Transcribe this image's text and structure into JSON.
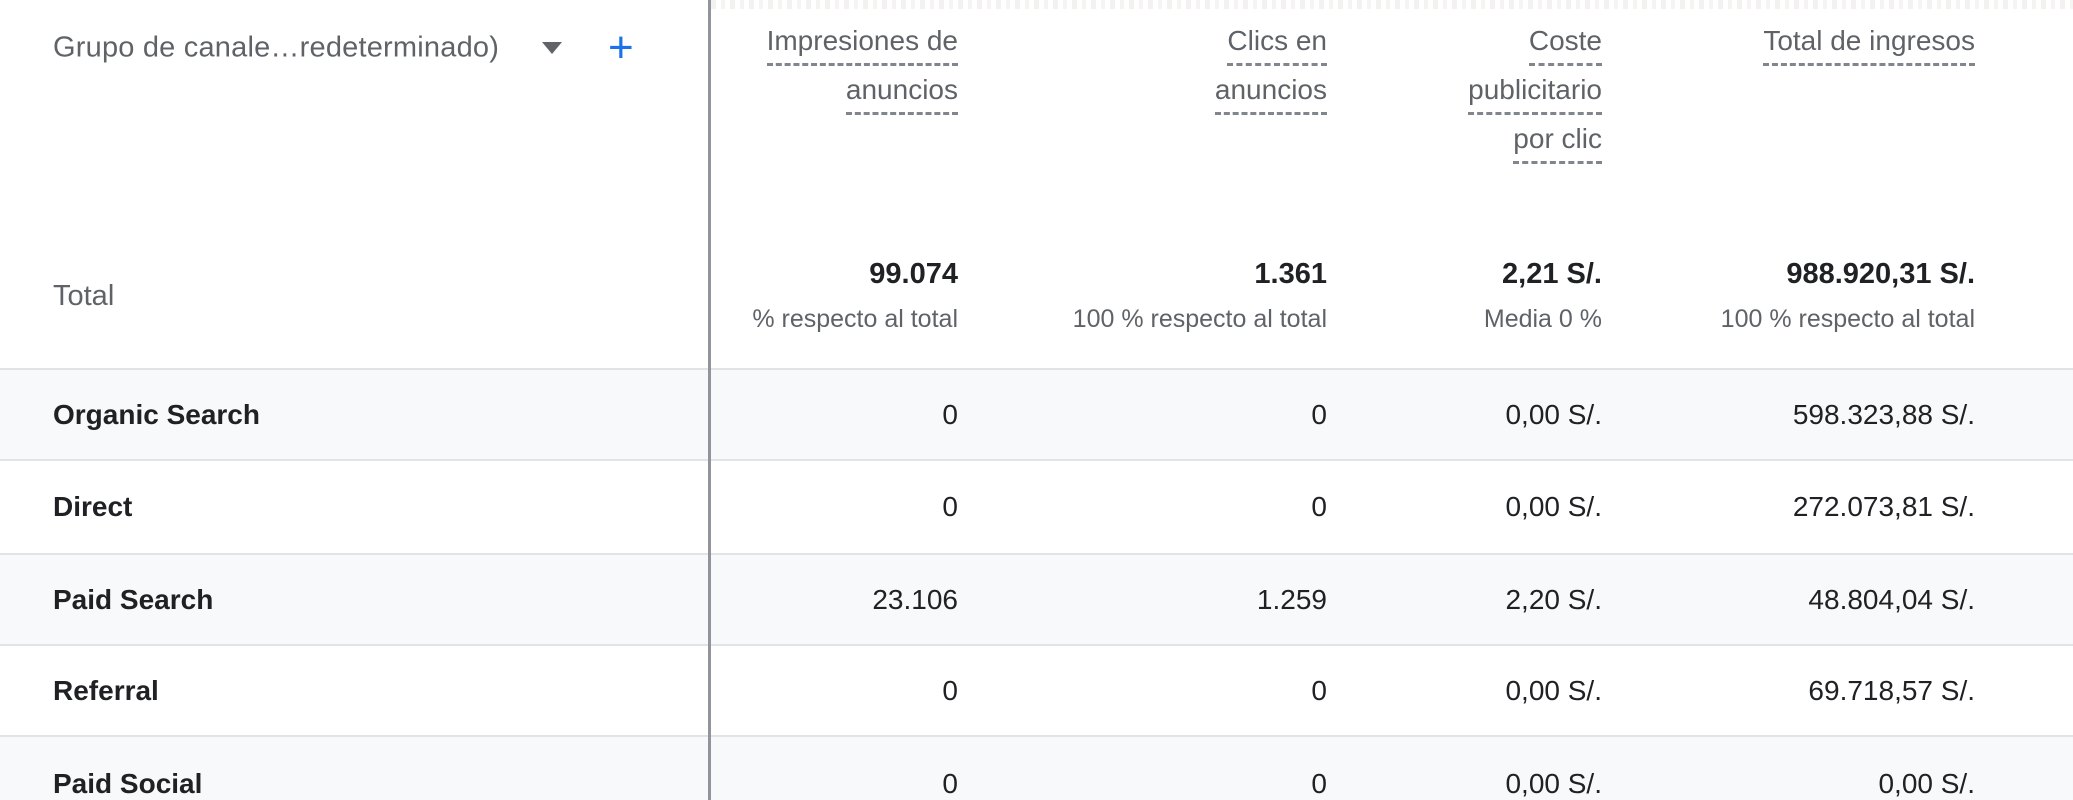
{
  "dimension_selector": {
    "label": "Grupo de canale…redeterminado)"
  },
  "icons": {
    "chevron_down_icon": "▾",
    "plus_icon": "+"
  },
  "total_row_label": "Total",
  "columns": [
    {
      "id": "ad_impressions",
      "header_lines": [
        "Impresiones de",
        "anuncios"
      ],
      "total": "99.074",
      "total_note": "% respecto al total"
    },
    {
      "id": "ad_clicks",
      "header_lines": [
        "Clics en",
        "anuncios"
      ],
      "total": "1.361",
      "total_note": "100 % respecto al total"
    },
    {
      "id": "advertising_cost_per_click",
      "header_lines": [
        "Coste",
        "publicitario",
        "por clic"
      ],
      "total": "2,21 S/.",
      "total_note": "Media 0 %"
    },
    {
      "id": "total_revenue",
      "header_lines": [
        "Total de ingresos"
      ],
      "total": "988.920,31 S/.",
      "total_note": "100 % respecto al total"
    }
  ],
  "rows": [
    {
      "channel": "Organic Search",
      "values": [
        "0",
        "0",
        "0,00 S/.",
        "598.323,88 S/."
      ]
    },
    {
      "channel": "Direct",
      "values": [
        "0",
        "0",
        "0,00 S/.",
        "272.073,81 S/."
      ]
    },
    {
      "channel": "Paid Search",
      "values": [
        "23.106",
        "1.259",
        "2,20 S/.",
        "48.804,04 S/."
      ]
    },
    {
      "channel": "Referral",
      "values": [
        "0",
        "0",
        "0,00 S/.",
        "69.718,57 S/."
      ]
    },
    {
      "channel": "Paid Social",
      "values": [
        "0",
        "0",
        "0,00 S/.",
        "0,00 S/."
      ]
    }
  ],
  "colors": {
    "accent_blue": "#1a73e8",
    "header_text": "#5f6368",
    "value_text": "#202124",
    "stripe_row_bg": "#f8f9fa",
    "column_divider": "#8f959a",
    "row_border": "#e1e3e6",
    "dashed_underline": "#80868b"
  }
}
